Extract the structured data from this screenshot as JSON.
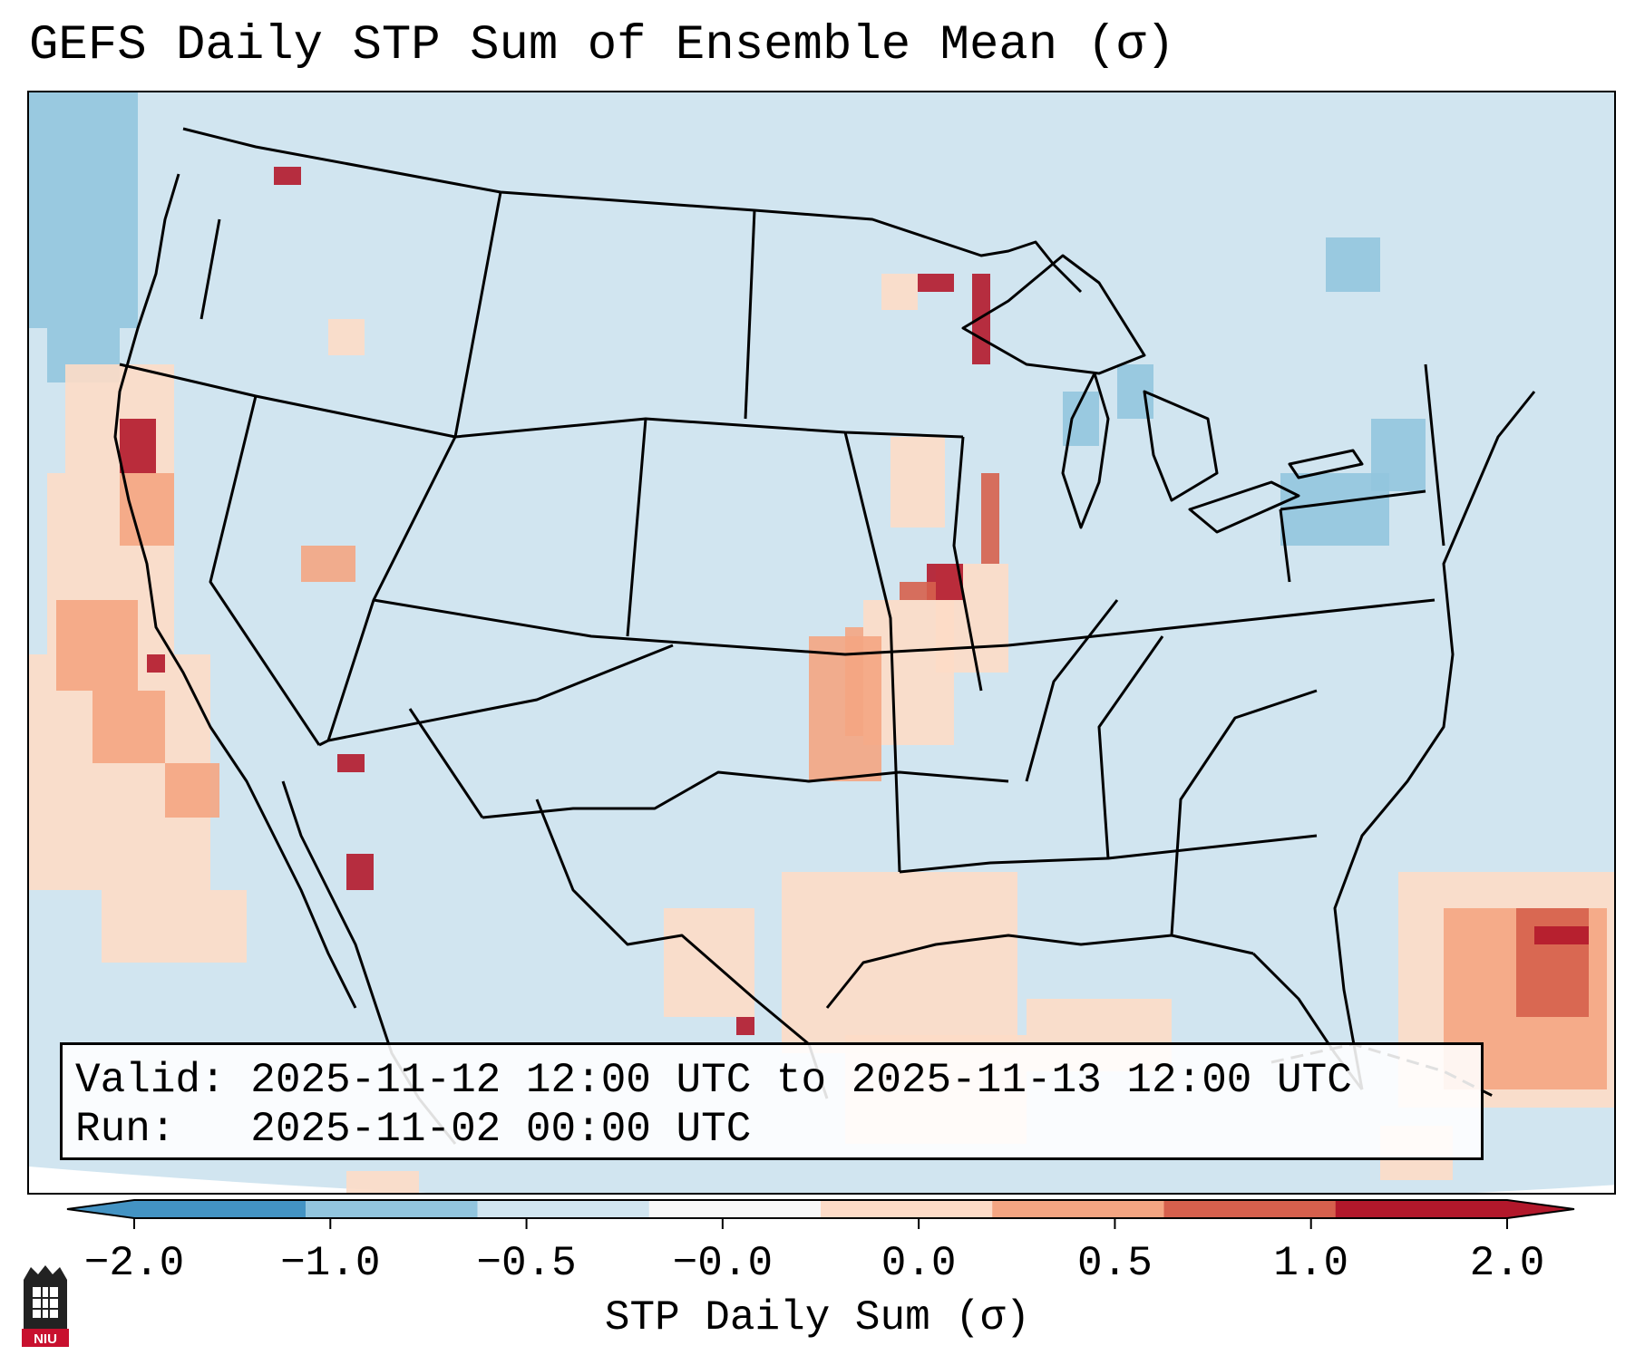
{
  "title": "GEFS Daily STP Sum of Ensemble Mean (σ)",
  "info": {
    "valid_line": "Valid: 2025-11-12 12:00 UTC to 2025-11-13 12:00 UTC",
    "run_line": "Run:   2025-11-02 00:00 UTC"
  },
  "colorbar": {
    "label": "STP Daily Sum (σ)",
    "ticks": [
      "−2.0",
      "−1.0",
      "−0.5",
      "−0.0",
      "0.0",
      "0.5",
      "1.0",
      "2.0"
    ],
    "colors": [
      "#4393c3",
      "#92c5de",
      "#d1e5f0",
      "#f7f7f7",
      "#fddbc7",
      "#f4a582",
      "#d6604d",
      "#b2182b"
    ]
  },
  "map": {
    "background_color": "#d1e5f0",
    "boundary_color": "#000000"
  },
  "logo": {
    "text": "NIU"
  }
}
